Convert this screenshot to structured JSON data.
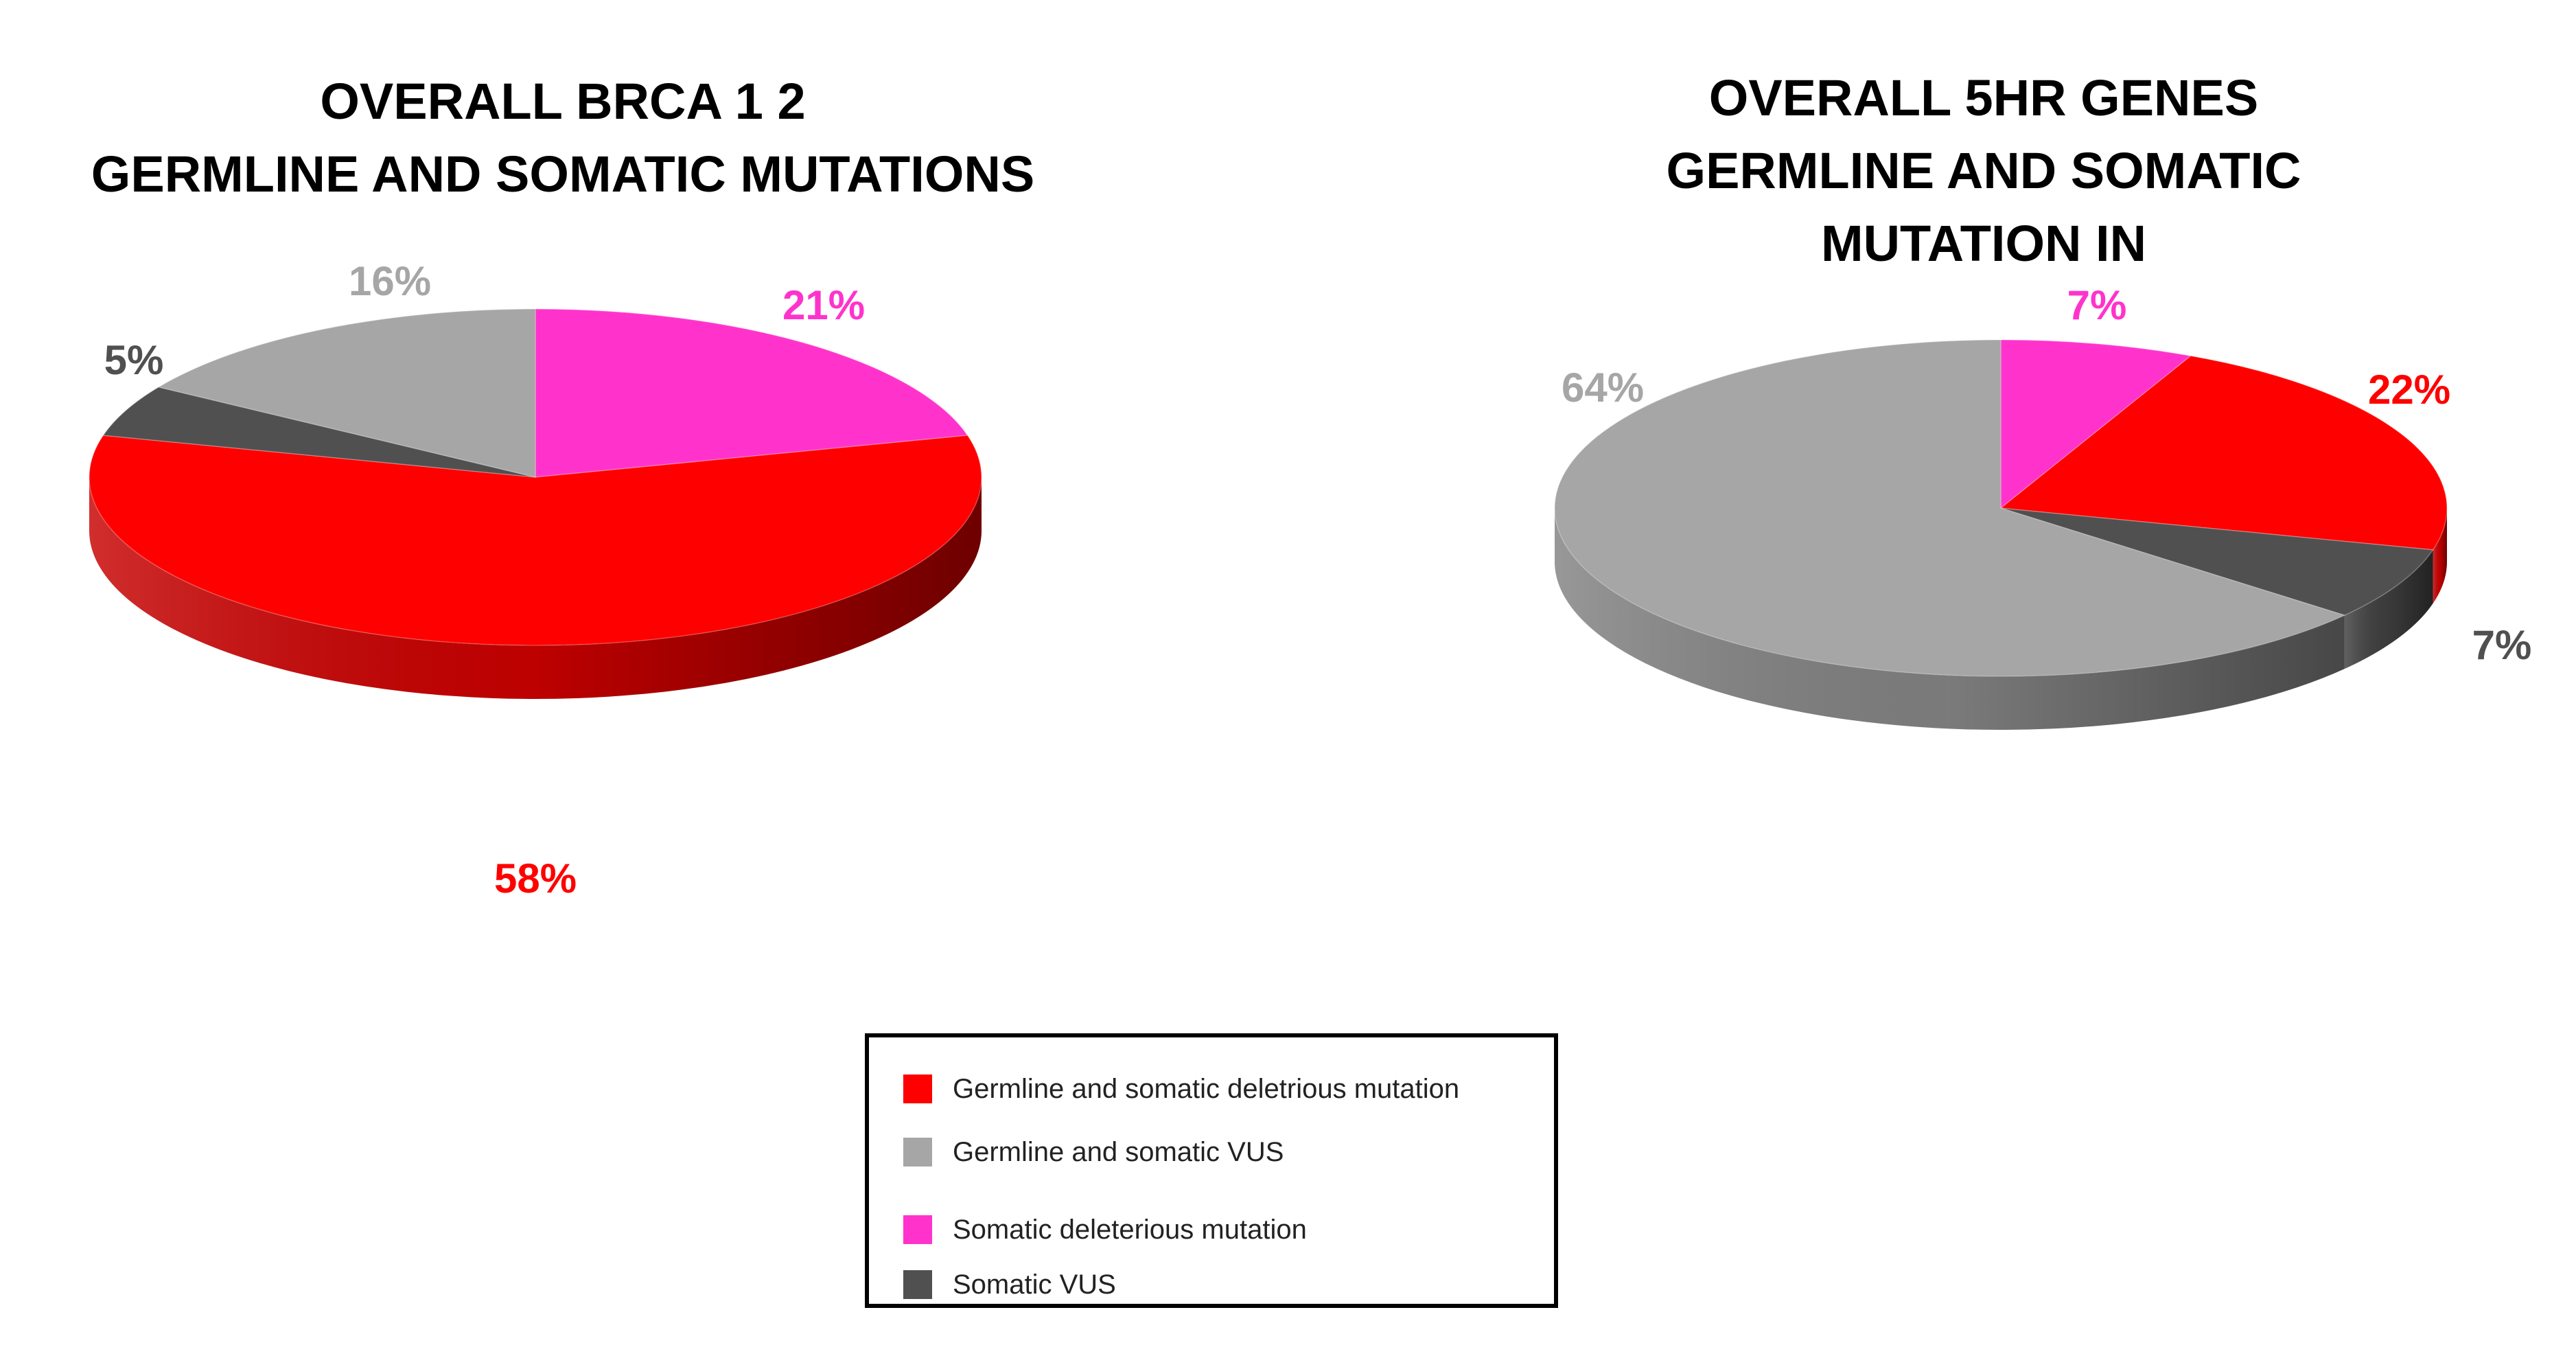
{
  "colors": {
    "deleterious": "#FF0000",
    "vus": "#A6A6A6",
    "somatic_deleterious": "#FF33CC",
    "somatic_vus": "#505050"
  },
  "chart_data": [
    {
      "type": "pie",
      "title_lines": [
        "OVERALL BRCA 1 2",
        "GERMLINE AND SOMATIC MUTATIONS"
      ],
      "slices": [
        {
          "label": "Somatic deleterious mutation",
          "value": 21,
          "display": "21%",
          "color": "#FF33CC"
        },
        {
          "label": "Germline and somatic deletrious mutation",
          "value": 58,
          "display": "58%",
          "color": "#FF0000"
        },
        {
          "label": "Somatic VUS",
          "value": 5,
          "display": "5%",
          "color": "#505050"
        },
        {
          "label": "Germline and somatic VUS",
          "value": 16,
          "display": "16%",
          "color": "#A6A6A6"
        }
      ]
    },
    {
      "type": "pie",
      "title_lines": [
        "OVERALL 5HR GENES",
        "GERMLINE AND SOMATIC",
        "MUTATION IN"
      ],
      "slices": [
        {
          "label": "Somatic deleterious mutation",
          "value": 7,
          "display": "7%",
          "color": "#FF33CC"
        },
        {
          "label": "Germline and somatic deletrious mutation",
          "value": 22,
          "display": "22%",
          "color": "#FF0000"
        },
        {
          "label": "Somatic VUS",
          "value": 7,
          "display": "7%",
          "color": "#505050"
        },
        {
          "label": "Germline and somatic VUS",
          "value": 64,
          "display": "64%",
          "color": "#A6A6A6"
        }
      ]
    }
  ],
  "legend": {
    "placement": "bottom-center",
    "items": [
      {
        "label": "Germline and somatic deletrious mutation",
        "color": "#FF0000"
      },
      {
        "label": "Germline and somatic VUS",
        "color": "#A6A6A6"
      },
      {
        "label": "Somatic deleterious mutation",
        "color": "#FF33CC"
      },
      {
        "label": "Somatic VUS",
        "color": "#505050"
      }
    ]
  }
}
